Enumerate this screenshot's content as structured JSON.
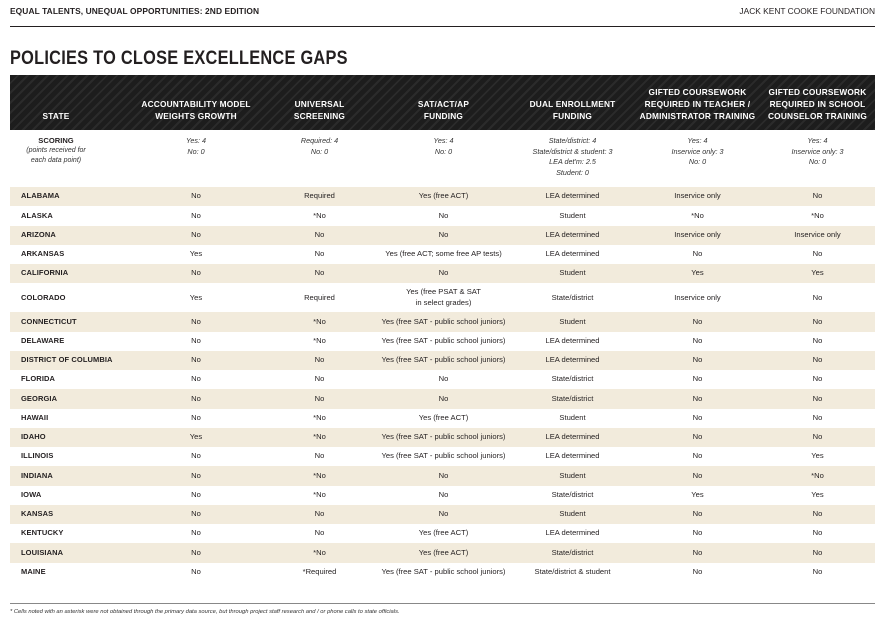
{
  "header": {
    "left": "EQUAL TALENTS, UNEQUAL OPPORTUNITIES: 2ND EDITION",
    "right": "JACK KENT COOKE FOUNDATION"
  },
  "title": "POLICIES TO CLOSE EXCELLENCE GAPS",
  "columns": [
    "STATE",
    "ACCOUNTABILITY MODEL\nWEIGHTS GROWTH",
    "UNIVERSAL\nSCREENING",
    "SAT/ACT/AP\nFUNDING",
    "DUAL ENROLLMENT\nFUNDING",
    "GIFTED COURSEWORK\nREQUIRED IN TEACHER /\nADMINISTRATOR TRAINING",
    "GIFTED COURSEWORK\nREQUIRED IN SCHOOL\nCOUNSELOR TRAINING"
  ],
  "scoring": {
    "label": "SCORING",
    "sublabel": "(points received for\neach data point)",
    "values": [
      "Yes: 4\nNo: 0",
      "Required: 4\nNo: 0",
      "Yes: 4\nNo: 0",
      "State/district: 4\nState/district & student: 3\nLEA det'm: 2.5\nStudent: 0",
      "Yes: 4\nInservice only: 3\nNo: 0",
      "Yes: 4\nInservice only: 3\nNo: 0"
    ]
  },
  "rows": [
    [
      "ALABAMA",
      "No",
      "Required",
      "Yes (free ACT)",
      "LEA determined",
      "Inservice only",
      "No"
    ],
    [
      "ALASKA",
      "No",
      "*No",
      "No",
      "Student",
      "*No",
      "*No"
    ],
    [
      "ARIZONA",
      "No",
      "No",
      "No",
      "LEA determined",
      "Inservice only",
      "Inservice only"
    ],
    [
      "ARKANSAS",
      "Yes",
      "No",
      "Yes (free ACT; some free AP tests)",
      "LEA determined",
      "No",
      "No"
    ],
    [
      "CALIFORNIA",
      "No",
      "No",
      "No",
      "Student",
      "Yes",
      "Yes"
    ],
    [
      "COLORADO",
      "Yes",
      "Required",
      "Yes (free PSAT & SAT\nin select grades)",
      "State/district",
      "Inservice only",
      "No"
    ],
    [
      "CONNECTICUT",
      "No",
      "*No",
      "Yes (free SAT - public school juniors)",
      "Student",
      "No",
      "No"
    ],
    [
      "DELAWARE",
      "No",
      "*No",
      "Yes (free SAT - public school juniors)",
      "LEA determined",
      "No",
      "No"
    ],
    [
      "DISTRICT OF COLUMBIA",
      "No",
      "No",
      "Yes (free SAT - public school juniors)",
      "LEA determined",
      "No",
      "No"
    ],
    [
      "FLORIDA",
      "No",
      "No",
      "No",
      "State/district",
      "No",
      "No"
    ],
    [
      "GEORGIA",
      "No",
      "No",
      "No",
      "State/district",
      "No",
      "No"
    ],
    [
      "HAWAII",
      "No",
      "*No",
      "Yes (free ACT)",
      "Student",
      "No",
      "No"
    ],
    [
      "IDAHO",
      "Yes",
      "*No",
      "Yes (free SAT - public school juniors)",
      "LEA determined",
      "No",
      "No"
    ],
    [
      "ILLINOIS",
      "No",
      "No",
      "Yes (free SAT - public school juniors)",
      "LEA determined",
      "No",
      "Yes"
    ],
    [
      "INDIANA",
      "No",
      "*No",
      "No",
      "Student",
      "No",
      "*No"
    ],
    [
      "IOWA",
      "No",
      "*No",
      "No",
      "State/district",
      "Yes",
      "Yes"
    ],
    [
      "KANSAS",
      "No",
      "No",
      "No",
      "Student",
      "No",
      "No"
    ],
    [
      "KENTUCKY",
      "No",
      "No",
      "Yes (free ACT)",
      "LEA determined",
      "No",
      "No"
    ],
    [
      "LOUISIANA",
      "No",
      "*No",
      "Yes (free ACT)",
      "State/district",
      "No",
      "No"
    ],
    [
      "MAINE",
      "No",
      "*Required",
      "Yes (free SAT - public school juniors)",
      "State/district & student",
      "No",
      "No"
    ]
  ],
  "footnote": "* Cells noted with an asterisk were not obtained through the primary data source, but through project staff research and / or phone calls to state officials."
}
